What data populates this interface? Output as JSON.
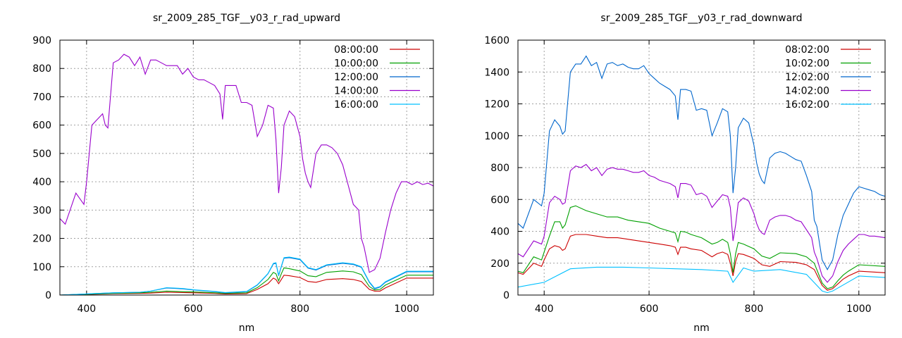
{
  "chart_data": [
    {
      "type": "line",
      "title": "sr_2009_285_TGF__y03_r_rad_upward",
      "xlabel": "nm",
      "ylabel": "",
      "xlim": [
        350,
        1050
      ],
      "ylim": [
        0,
        900
      ],
      "xticks": [
        400,
        600,
        800,
        1000
      ],
      "yticks": [
        0,
        100,
        200,
        300,
        400,
        500,
        600,
        700,
        800,
        900
      ],
      "grid": true,
      "legend_position": "top-right",
      "series": [
        {
          "name": "08:00:00",
          "color": "#cc0000",
          "x": [
            350,
            400,
            450,
            500,
            520,
            550,
            580,
            600,
            640,
            660,
            700,
            720,
            740,
            750,
            755,
            760,
            765,
            770,
            780,
            800,
            815,
            830,
            850,
            880,
            900,
            915,
            930,
            940,
            950,
            960,
            1000,
            1050
          ],
          "values": [
            0,
            2,
            5,
            6,
            7,
            10,
            9,
            8,
            6,
            4,
            5,
            20,
            40,
            60,
            55,
            40,
            55,
            70,
            68,
            62,
            48,
            45,
            55,
            58,
            55,
            48,
            20,
            14,
            14,
            25,
            60,
            60
          ]
        },
        {
          "name": "10:00:00",
          "color": "#00a000",
          "x": [
            350,
            400,
            450,
            500,
            520,
            550,
            580,
            600,
            640,
            660,
            700,
            720,
            740,
            750,
            755,
            760,
            765,
            770,
            780,
            800,
            815,
            830,
            850,
            880,
            900,
            915,
            930,
            940,
            950,
            960,
            1000,
            1050
          ],
          "values": [
            0,
            3,
            6,
            8,
            10,
            14,
            12,
            11,
            8,
            6,
            8,
            26,
            55,
            80,
            75,
            50,
            75,
            96,
            93,
            85,
            68,
            65,
            80,
            85,
            82,
            72,
            30,
            18,
            20,
            35,
            70,
            70
          ]
        },
        {
          "name": "12:00:00",
          "color": "#0066cc",
          "x": [
            350,
            400,
            450,
            500,
            520,
            550,
            580,
            600,
            640,
            660,
            700,
            720,
            740,
            750,
            755,
            760,
            765,
            770,
            780,
            800,
            815,
            830,
            850,
            880,
            900,
            915,
            930,
            940,
            950,
            960,
            1000,
            1050
          ],
          "values": [
            0,
            4,
            8,
            10,
            14,
            25,
            22,
            18,
            12,
            8,
            12,
            35,
            75,
            110,
            112,
            68,
            100,
            130,
            132,
            125,
            95,
            88,
            105,
            112,
            108,
            98,
            45,
            22,
            28,
            45,
            82,
            82
          ]
        },
        {
          "name": "14:00:00",
          "color": "#9900cc",
          "x": [
            350,
            360,
            380,
            395,
            400,
            410,
            420,
            430,
            435,
            440,
            450,
            460,
            470,
            480,
            490,
            500,
            510,
            520,
            530,
            540,
            550,
            560,
            570,
            580,
            590,
            600,
            610,
            620,
            630,
            640,
            650,
            655,
            660,
            670,
            680,
            690,
            700,
            710,
            720,
            730,
            740,
            750,
            755,
            760,
            765,
            770,
            780,
            790,
            800,
            805,
            810,
            815,
            820,
            830,
            840,
            850,
            860,
            870,
            880,
            890,
            900,
            910,
            915,
            920,
            930,
            940,
            950,
            960,
            970,
            980,
            990,
            1000,
            1010,
            1020,
            1030,
            1040,
            1050
          ],
          "values": [
            270,
            250,
            360,
            320,
            400,
            600,
            620,
            640,
            600,
            590,
            820,
            830,
            850,
            840,
            810,
            840,
            780,
            830,
            830,
            820,
            810,
            810,
            810,
            780,
            800,
            770,
            760,
            760,
            750,
            740,
            710,
            620,
            740,
            740,
            740,
            680,
            680,
            670,
            560,
            600,
            670,
            660,
            550,
            360,
            450,
            600,
            650,
            630,
            560,
            480,
            430,
            400,
            380,
            500,
            530,
            530,
            520,
            500,
            460,
            390,
            320,
            300,
            200,
            170,
            80,
            90,
            130,
            220,
            300,
            360,
            400,
            400,
            390,
            400,
            390,
            395,
            385
          ]
        },
        {
          "name": "16:00:00",
          "color": "#00c0ff",
          "x": [
            350,
            400,
            450,
            500,
            520,
            550,
            580,
            600,
            640,
            660,
            700,
            720,
            740,
            750,
            755,
            760,
            765,
            770,
            780,
            800,
            815,
            830,
            850,
            880,
            900,
            915,
            930,
            940,
            950,
            960,
            1000,
            1050
          ],
          "values": [
            0,
            4,
            8,
            10,
            14,
            26,
            23,
            19,
            13,
            9,
            13,
            36,
            76,
            112,
            114,
            70,
            102,
            132,
            134,
            127,
            97,
            90,
            107,
            114,
            110,
            100,
            47,
            24,
            30,
            47,
            84,
            84
          ]
        }
      ]
    },
    {
      "type": "line",
      "title": "sr_2009_285_TGF__y03_r_rad_downward",
      "xlabel": "nm",
      "ylabel": "",
      "xlim": [
        350,
        1050
      ],
      "ylim": [
        0,
        1600
      ],
      "xticks": [
        400,
        600,
        800,
        1000
      ],
      "yticks": [
        0,
        200,
        400,
        600,
        800,
        1000,
        1200,
        1400,
        1600
      ],
      "grid": true,
      "legend_position": "top-right",
      "series": [
        {
          "name": "08:02:00",
          "color": "#cc0000",
          "x": [
            350,
            360,
            380,
            395,
            400,
            410,
            420,
            430,
            435,
            440,
            450,
            460,
            480,
            500,
            520,
            540,
            560,
            580,
            600,
            620,
            640,
            650,
            655,
            660,
            670,
            680,
            700,
            720,
            730,
            740,
            750,
            755,
            760,
            765,
            770,
            780,
            800,
            815,
            830,
            850,
            880,
            900,
            915,
            930,
            940,
            950,
            960,
            970,
            980,
            1000,
            1050
          ],
          "values": [
            140,
            130,
            200,
            180,
            220,
            290,
            310,
            300,
            280,
            290,
            370,
            380,
            380,
            370,
            360,
            360,
            350,
            340,
            330,
            320,
            310,
            300,
            255,
            300,
            300,
            290,
            280,
            240,
            260,
            270,
            255,
            200,
            120,
            210,
            260,
            255,
            230,
            190,
            180,
            210,
            205,
            190,
            160,
            60,
            30,
            40,
            70,
            100,
            120,
            150,
            140
          ]
        },
        {
          "name": "10:02:00",
          "color": "#00a000",
          "x": [
            350,
            360,
            380,
            395,
            400,
            410,
            420,
            430,
            435,
            440,
            450,
            460,
            480,
            500,
            520,
            540,
            560,
            580,
            600,
            620,
            640,
            650,
            655,
            660,
            670,
            680,
            700,
            720,
            730,
            740,
            750,
            755,
            760,
            765,
            770,
            780,
            800,
            815,
            830,
            850,
            880,
            900,
            915,
            930,
            940,
            950,
            960,
            970,
            980,
            1000,
            1050
          ],
          "values": [
            150,
            140,
            240,
            220,
            270,
            370,
            460,
            460,
            420,
            440,
            550,
            560,
            530,
            510,
            490,
            490,
            470,
            460,
            450,
            420,
            400,
            390,
            335,
            400,
            395,
            380,
            360,
            320,
            330,
            350,
            330,
            260,
            140,
            260,
            330,
            320,
            290,
            245,
            230,
            265,
            260,
            240,
            200,
            75,
            40,
            50,
            90,
            125,
            150,
            190,
            180
          ]
        },
        {
          "name": "12:02:00",
          "color": "#0066cc",
          "x": [
            350,
            360,
            380,
            395,
            400,
            410,
            420,
            430,
            435,
            440,
            450,
            460,
            470,
            480,
            490,
            500,
            510,
            520,
            530,
            540,
            550,
            560,
            570,
            580,
            590,
            600,
            610,
            620,
            630,
            640,
            650,
            655,
            660,
            670,
            680,
            690,
            700,
            710,
            720,
            730,
            740,
            750,
            755,
            760,
            765,
            770,
            780,
            790,
            800,
            805,
            810,
            815,
            820,
            830,
            840,
            850,
            860,
            870,
            880,
            890,
            900,
            910,
            915,
            920,
            930,
            940,
            950,
            960,
            970,
            980,
            990,
            1000,
            1010,
            1020,
            1030,
            1040,
            1050
          ],
          "values": [
            450,
            420,
            600,
            560,
            640,
            1030,
            1100,
            1060,
            1010,
            1030,
            1400,
            1450,
            1450,
            1500,
            1440,
            1460,
            1360,
            1450,
            1460,
            1440,
            1450,
            1430,
            1420,
            1420,
            1440,
            1390,
            1360,
            1330,
            1310,
            1290,
            1250,
            1100,
            1290,
            1290,
            1280,
            1160,
            1170,
            1160,
            1000,
            1080,
            1170,
            1150,
            1000,
            640,
            800,
            1050,
            1110,
            1080,
            940,
            830,
            760,
            720,
            700,
            860,
            890,
            900,
            890,
            870,
            850,
            840,
            750,
            650,
            470,
            430,
            220,
            160,
            220,
            380,
            500,
            570,
            640,
            680,
            670,
            660,
            650,
            630,
            620
          ]
        },
        {
          "name": "14:02:00",
          "color": "#9900cc",
          "x": [
            350,
            360,
            380,
            395,
            400,
            410,
            420,
            430,
            435,
            440,
            450,
            460,
            470,
            480,
            490,
            500,
            510,
            520,
            530,
            540,
            550,
            560,
            570,
            580,
            590,
            600,
            610,
            620,
            630,
            640,
            650,
            655,
            660,
            670,
            680,
            690,
            700,
            710,
            720,
            730,
            740,
            750,
            755,
            760,
            765,
            770,
            780,
            790,
            800,
            805,
            810,
            815,
            820,
            830,
            840,
            850,
            860,
            870,
            880,
            890,
            900,
            910,
            915,
            920,
            930,
            940,
            950,
            960,
            970,
            980,
            990,
            1000,
            1010,
            1020,
            1030,
            1040,
            1050
          ],
          "values": [
            260,
            240,
            340,
            320,
            370,
            580,
            620,
            600,
            570,
            580,
            780,
            810,
            800,
            820,
            780,
            800,
            750,
            790,
            800,
            790,
            790,
            780,
            770,
            770,
            780,
            750,
            740,
            720,
            710,
            700,
            680,
            610,
            700,
            700,
            690,
            630,
            640,
            620,
            550,
            590,
            630,
            620,
            550,
            340,
            440,
            580,
            610,
            590,
            510,
            450,
            410,
            390,
            380,
            470,
            490,
            500,
            500,
            490,
            470,
            460,
            410,
            360,
            270,
            230,
            120,
            80,
            120,
            210,
            280,
            320,
            350,
            380,
            380,
            370,
            370,
            365,
            360
          ]
        },
        {
          "name": "16:02:00",
          "color": "#00c0ff",
          "x": [
            350,
            400,
            450,
            500,
            550,
            600,
            650,
            700,
            750,
            760,
            780,
            800,
            850,
            900,
            930,
            940,
            950,
            1000,
            1050
          ],
          "values": [
            50,
            80,
            165,
            175,
            175,
            170,
            165,
            160,
            150,
            80,
            170,
            150,
            160,
            130,
            25,
            15,
            25,
            120,
            110
          ]
        }
      ]
    }
  ]
}
